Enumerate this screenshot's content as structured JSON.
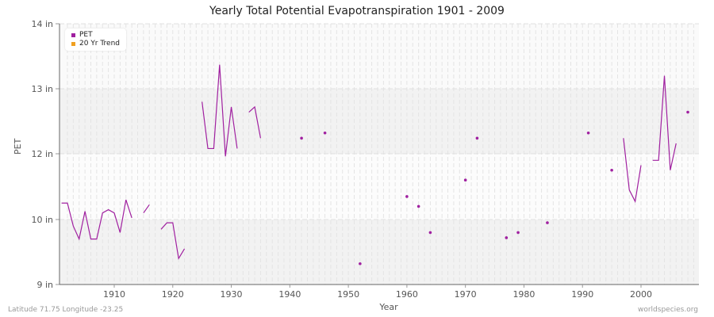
{
  "title": "Yearly Total Potential Evapotranspiration 1901 - 2009",
  "footer": {
    "left": "Latitude 71.75 Longitude -23.25",
    "right": "worldspecies.org"
  },
  "legend": [
    {
      "label": "PET",
      "color": "#a020a0"
    },
    {
      "label": "20 Yr Trend",
      "color": "#f0a020"
    }
  ],
  "chart_data": {
    "type": "line",
    "title": "Yearly Total Potential Evapotranspiration 1901 - 2009",
    "xlabel": "Year",
    "ylabel": "PET",
    "ytick_labels": [
      "14 in",
      "13 in",
      "12 in",
      "10 in",
      "9 in"
    ],
    "xtick_labels": [
      "1910",
      "1920",
      "1930",
      "1940",
      "1950",
      "1960",
      "1970",
      "1980",
      "1990",
      "2000"
    ],
    "xlim": [
      1901,
      2009
    ],
    "grid": true,
    "legend_position": "top-left",
    "series": [
      {
        "name": "PET",
        "color": "#a020a0",
        "points": [
          [
            1901,
            10.5
          ],
          [
            1902,
            10.5
          ],
          [
            1903,
            9.9
          ],
          [
            1904,
            9.7
          ],
          [
            1905,
            10.25
          ],
          [
            1906,
            9.7
          ],
          [
            1907,
            9.7
          ],
          [
            1908,
            10.2
          ],
          [
            1909,
            10.3
          ],
          [
            1910,
            10.2
          ],
          [
            1911,
            9.8
          ],
          [
            1912,
            10.6
          ],
          [
            1913,
            10.05
          ],
          [
            1915,
            10.2
          ],
          [
            1916,
            10.45
          ],
          [
            1918,
            9.85
          ],
          [
            1919,
            9.95
          ],
          [
            1920,
            9.95
          ],
          [
            1921,
            9.4
          ],
          [
            1922,
            9.55
          ],
          [
            1925,
            12.8
          ],
          [
            1926,
            12.08
          ],
          [
            1927,
            12.08
          ],
          [
            1928,
            13.37
          ],
          [
            1929,
            11.92
          ],
          [
            1930,
            12.72
          ],
          [
            1931,
            12.08
          ],
          [
            1933,
            12.64
          ],
          [
            1934,
            12.72
          ],
          [
            1935,
            12.24
          ],
          [
            1942,
            12.24
          ],
          [
            1946,
            12.32
          ],
          [
            1952,
            9.32
          ],
          [
            1960,
            10.7
          ],
          [
            1962,
            10.4
          ],
          [
            1964,
            9.8
          ],
          [
            1970,
            11.2
          ],
          [
            1972,
            12.24
          ],
          [
            1977,
            9.72
          ],
          [
            1979,
            9.8
          ],
          [
            1984,
            9.95
          ],
          [
            1991,
            12.32
          ],
          [
            1995,
            11.5
          ],
          [
            1997,
            12.24
          ],
          [
            1998,
            10.9
          ],
          [
            1999,
            10.55
          ],
          [
            2000,
            11.65
          ],
          [
            2002,
            11.8
          ],
          [
            2003,
            11.8
          ],
          [
            2004,
            13.2
          ],
          [
            2005,
            11.5
          ],
          [
            2006,
            12.16
          ],
          [
            2008,
            12.64
          ]
        ]
      },
      {
        "name": "20 Yr Trend",
        "color": "#f0a020",
        "points": []
      }
    ]
  }
}
